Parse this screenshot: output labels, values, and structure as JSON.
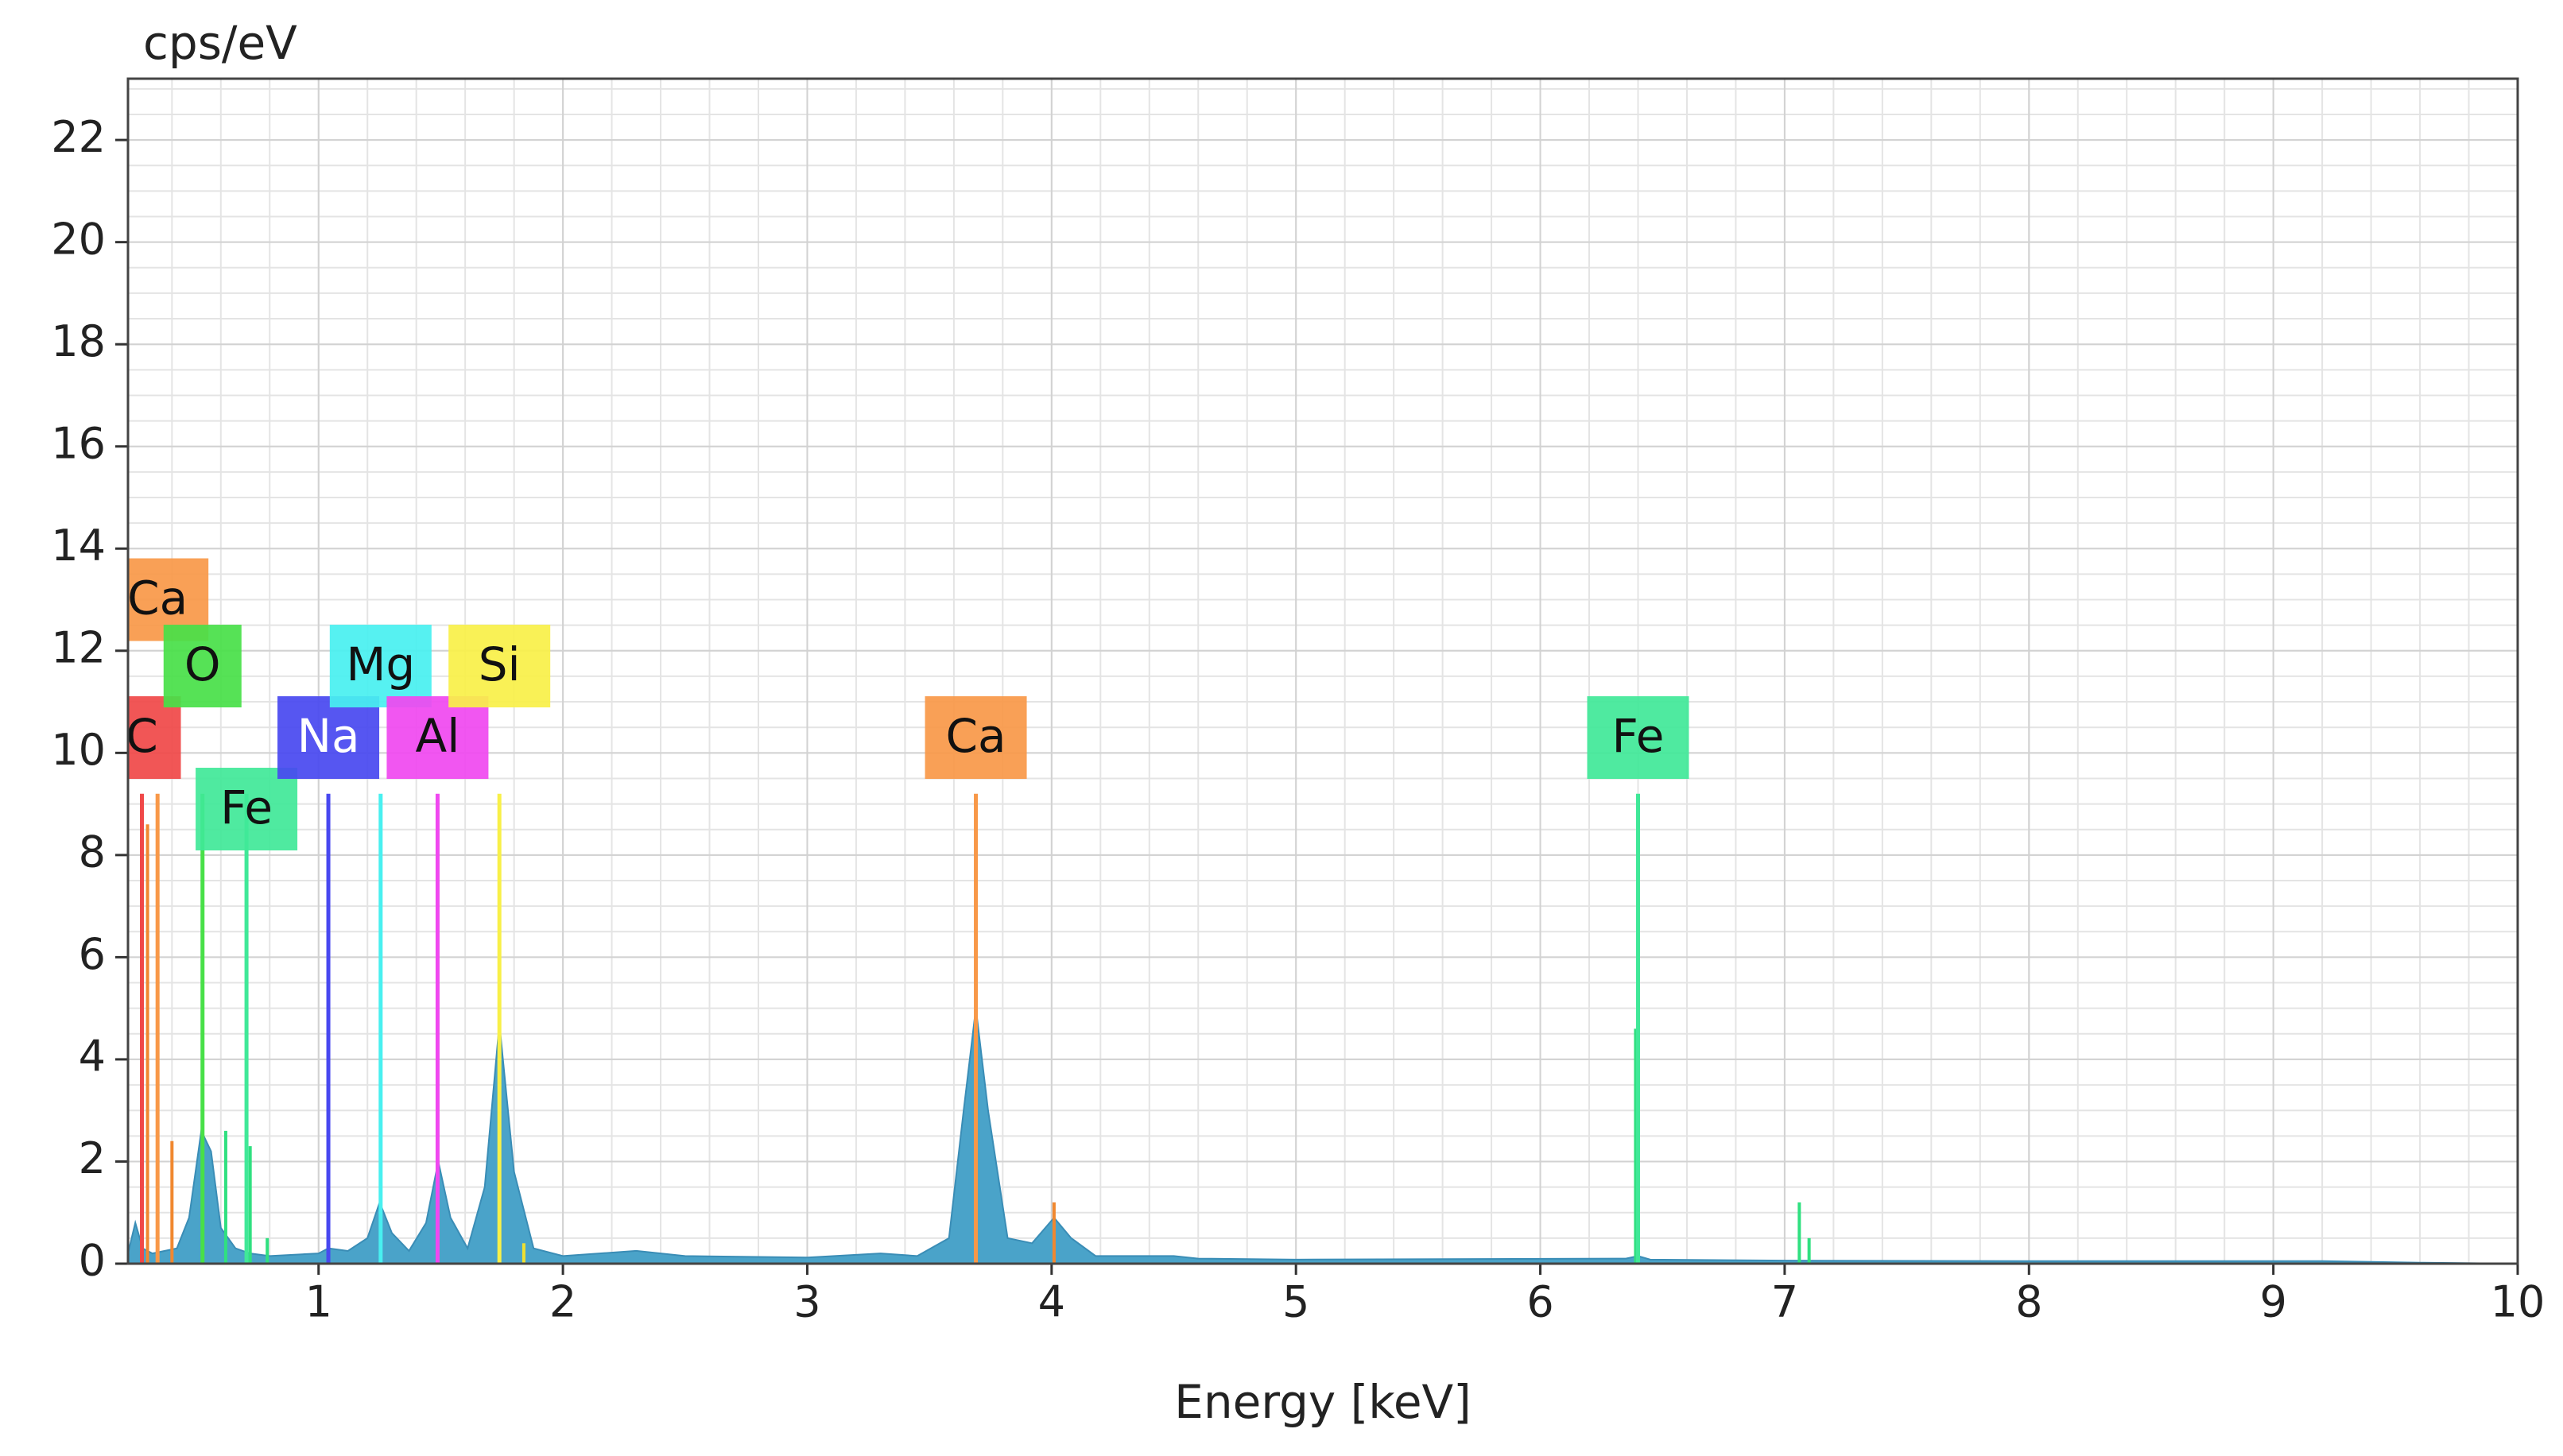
{
  "chart_data": {
    "type": "area",
    "y_label": "cps/eV",
    "x_label": "Energy [keV]",
    "xlim": [
      0.22,
      10
    ],
    "ylim": [
      0,
      23.2
    ],
    "xticks": [
      1,
      2,
      3,
      4,
      5,
      6,
      7,
      8,
      9,
      10
    ],
    "yticks": [
      0,
      2,
      4,
      6,
      8,
      10,
      12,
      14,
      16,
      18,
      20,
      22
    ],
    "grid": true,
    "series": [
      {
        "color": "#4aa3c9",
        "x": [
          0.22,
          0.25,
          0.28,
          0.32,
          0.42,
          0.47,
          0.52,
          0.56,
          0.6,
          0.66,
          0.72,
          0.8,
          1.0,
          1.04,
          1.12,
          1.2,
          1.25,
          1.3,
          1.37,
          1.44,
          1.49,
          1.54,
          1.61,
          1.68,
          1.74,
          1.8,
          1.88,
          2.0,
          2.3,
          2.5,
          3.0,
          3.3,
          3.45,
          3.58,
          3.64,
          3.69,
          3.74,
          3.82,
          3.92,
          4.01,
          4.08,
          4.18,
          4.5,
          4.6,
          5.0,
          6.35,
          6.4,
          6.45,
          7.0,
          8.0,
          9.2,
          9.6,
          10.0
        ],
        "values": [
          0.2,
          0.8,
          0.3,
          0.2,
          0.3,
          0.9,
          2.6,
          2.2,
          0.7,
          0.3,
          0.2,
          0.15,
          0.2,
          0.3,
          0.25,
          0.5,
          1.2,
          0.6,
          0.25,
          0.8,
          2.0,
          0.9,
          0.3,
          1.5,
          4.7,
          1.8,
          0.3,
          0.15,
          0.25,
          0.15,
          0.12,
          0.2,
          0.15,
          0.5,
          3.0,
          5.0,
          3.0,
          0.5,
          0.4,
          0.9,
          0.5,
          0.15,
          0.15,
          0.1,
          0.08,
          0.1,
          0.15,
          0.08,
          0.06,
          0.05,
          0.05,
          0.02,
          0.0
        ]
      }
    ],
    "markers": [
      {
        "label": "C",
        "energy": 0.277,
        "height": 9.2,
        "color": "#f04848"
      },
      {
        "label": "Ca",
        "energy": 0.341,
        "height": 9.2,
        "color": "#f89848"
      },
      {
        "label": "O",
        "energy": 0.525,
        "height": 9.2,
        "color": "#48e048"
      },
      {
        "label": "Fe",
        "energy": 0.705,
        "height": 9.2,
        "color": "#40e898"
      },
      {
        "label": "Na",
        "energy": 1.04,
        "height": 9.2,
        "color": "#4848f0"
      },
      {
        "label": "Mg",
        "energy": 1.254,
        "height": 9.2,
        "color": "#48f0f0"
      },
      {
        "label": "Al",
        "energy": 1.487,
        "height": 9.2,
        "color": "#f048f0"
      },
      {
        "label": "Si",
        "energy": 1.74,
        "height": 9.2,
        "color": "#f8f048"
      },
      {
        "label": "Ca",
        "energy": 3.69,
        "height": 9.2,
        "color": "#f89848"
      },
      {
        "label": "Fe",
        "energy": 6.4,
        "height": 9.2,
        "color": "#40e898"
      }
    ],
    "lines": [
      {
        "energy": 0.3,
        "height": 8.6,
        "color": "#f08830"
      },
      {
        "energy": 0.4,
        "height": 2.4,
        "color": "#f08830"
      },
      {
        "energy": 0.62,
        "height": 2.6,
        "color": "#30e080"
      },
      {
        "energy": 0.72,
        "height": 2.3,
        "color": "#30e080"
      },
      {
        "energy": 0.79,
        "height": 0.5,
        "color": "#30e080"
      },
      {
        "energy": 1.84,
        "height": 0.4,
        "color": "#f0e030"
      },
      {
        "energy": 4.01,
        "height": 1.2,
        "color": "#f08830"
      },
      {
        "energy": 6.39,
        "height": 4.6,
        "color": "#30e080"
      },
      {
        "energy": 7.06,
        "height": 1.2,
        "color": "#30e080"
      },
      {
        "energy": 7.1,
        "height": 0.5,
        "color": "#30e080"
      }
    ]
  }
}
